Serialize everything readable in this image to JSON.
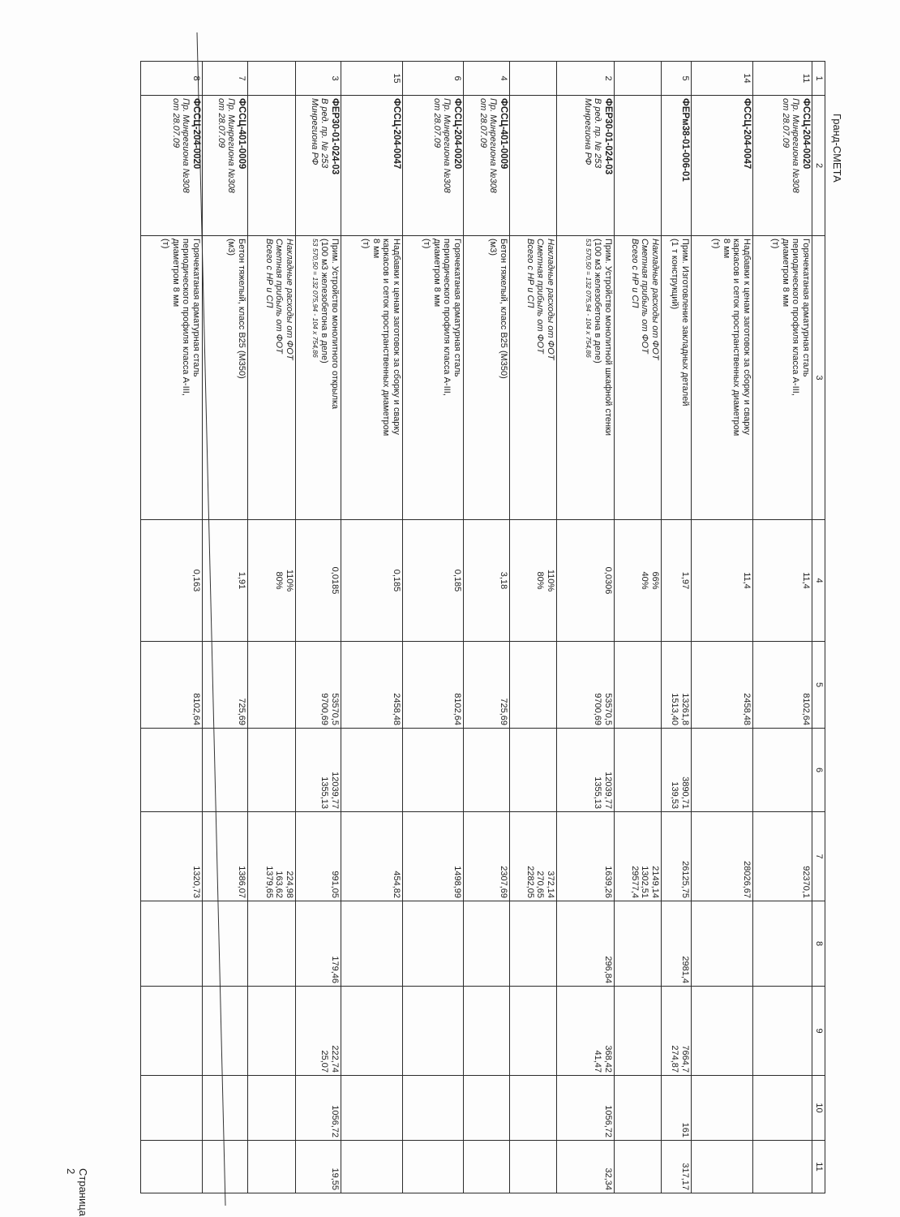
{
  "header": {
    "title": "Гранд-СМЕТА"
  },
  "footer": {
    "page_label": "Страница 2"
  },
  "table": {
    "column_numbers": [
      "1",
      "2",
      "3",
      "4",
      "5",
      "6",
      "7",
      "8",
      "9",
      "10",
      "11"
    ],
    "rows": [
      {
        "n": "11",
        "code": "ФССЦ-204-0020",
        "code_sub": [
          "Пр. Минрегиона №308",
          "от 28.07.09"
        ],
        "desc": [
          "Горячекатаная арматурная сталь",
          "периодического профиля класса А-III,",
          "диаметром 8 мм",
          "(т)"
        ],
        "note": [],
        "italic": [],
        "c4": [
          "11,4"
        ],
        "c5": [
          "8102,64"
        ],
        "c6": [],
        "c7": [
          "92370,1"
        ],
        "c8": [],
        "c9": [],
        "c10": [],
        "c11": []
      },
      {
        "n": "14",
        "code": "ФССЦ-204-0047",
        "code_sub": [],
        "desc": [
          "Надбавки к ценам заготовок за сборку и сварку",
          "каркасов и сеток пространственных диаметром",
          "8 мм",
          "(т)"
        ],
        "note": [],
        "italic": [],
        "c4": [
          "11,4"
        ],
        "c5": [
          "2458,48"
        ],
        "c6": [],
        "c7": [
          "28026,67"
        ],
        "c8": [],
        "c9": [],
        "c10": [],
        "c11": []
      },
      {
        "n": "5",
        "code": "ФЕРм38-01-006-01",
        "code_sub": [],
        "desc": [
          "Прим. Изготовление закладных деталей",
          "(1 т конструкций)"
        ],
        "note": [],
        "italic": [],
        "c4": [
          "1,97"
        ],
        "c5": [
          "13261,8",
          "1513,40"
        ],
        "c6": [
          "3890,71",
          "139,53"
        ],
        "c7": [
          "26125,75"
        ],
        "c8": [
          "2981,4"
        ],
        "c9": [
          "7664,7",
          "274,87"
        ],
        "c10": [
          "161"
        ],
        "c11": [
          "317,17"
        ]
      },
      {
        "n": "",
        "code": "",
        "code_sub": [],
        "desc": [],
        "note": [],
        "italic": [
          "Накладные расходы от ФОТ",
          "Сметная прибыль от ФОТ",
          "Всего с НР и СП"
        ],
        "c4": [
          "66%",
          "40%"
        ],
        "c5": [],
        "c6": [],
        "c7": [
          "2149,14",
          "1302,51",
          "29577,4"
        ],
        "c8": [],
        "c9": [],
        "c10": [],
        "c11": []
      },
      {
        "n": "2",
        "code": "ФЕР30-01-024-03",
        "code_sub": [
          "В ред. пр. № 253",
          "Минрегиона РФ"
        ],
        "desc": [
          "Прим. Устройство монолитной шкафной стенки",
          "(100 м3 железобетона в деле)"
        ],
        "note": [
          "53 570,50 = 132 075,94 - 104 x 754,86"
        ],
        "italic": [],
        "c4": [
          "0,0306"
        ],
        "c5": [
          "53570,5",
          "9700,69"
        ],
        "c6": [
          "12039,77",
          "1355,13"
        ],
        "c7": [
          "1639,26"
        ],
        "c8": [
          "296,84"
        ],
        "c9": [
          "368,42",
          "41,47"
        ],
        "c10": [
          "1056,72"
        ],
        "c11": [
          "32,34"
        ]
      },
      {
        "n": "",
        "code": "",
        "code_sub": [],
        "desc": [],
        "note": [],
        "italic": [
          "Накладные расходы от ФОТ",
          "Сметная прибыль от ФОТ",
          "Всего с НР и СП"
        ],
        "c4": [
          "110%",
          "80%"
        ],
        "c5": [],
        "c6": [],
        "c7": [
          "372,14",
          "270,65",
          "2282,05"
        ],
        "c8": [],
        "c9": [],
        "c10": [],
        "c11": []
      },
      {
        "n": "4",
        "code": "ФССЦ-401-0009",
        "code_sub": [
          "Пр. Минрегиона №308",
          "от 28.07.09"
        ],
        "desc": [
          "Бетон тяжелый, класс В25 (М350)",
          "(м3)"
        ],
        "note": [],
        "italic": [],
        "c4": [
          "3,18"
        ],
        "c5": [
          "725,69"
        ],
        "c6": [],
        "c7": [
          "2307,69"
        ],
        "c8": [],
        "c9": [],
        "c10": [],
        "c11": []
      },
      {
        "n": "6",
        "code": "ФССЦ-204-0020",
        "code_sub": [
          "Пр. Минрегиона №308",
          "от 28.07.09"
        ],
        "desc": [
          "Горячекатаная арматурная сталь",
          "периодического профиля класса А-III,",
          "диаметром 8 мм",
          "(т)"
        ],
        "note": [],
        "italic": [],
        "c4": [
          "0,185"
        ],
        "c5": [
          "8102,64"
        ],
        "c6": [],
        "c7": [
          "1498,99"
        ],
        "c8": [],
        "c9": [],
        "c10": [],
        "c11": []
      },
      {
        "n": "15",
        "code": "ФССЦ-204-0047",
        "code_sub": [],
        "desc": [
          "Надбавки к ценам заготовок за сборку и сварку",
          "каркасов и сеток пространственных диаметром",
          "8 мм",
          "(т)"
        ],
        "note": [],
        "italic": [],
        "c4": [
          "0,185"
        ],
        "c5": [
          "2458,48"
        ],
        "c6": [],
        "c7": [
          "454,82"
        ],
        "c8": [],
        "c9": [],
        "c10": [],
        "c11": []
      },
      {
        "n": "3",
        "code": "ФЕР30-01-024-03",
        "code_sub": [
          "В ред. пр. № 253",
          "Минрегиона РФ"
        ],
        "desc": [
          "Прим. Устройство монолитного открылка",
          "(100 м3 железобетона в деле)"
        ],
        "note": [
          "53 570,50 = 132 075,94 - 104 x 754,86"
        ],
        "italic": [],
        "c4": [
          "0,0185"
        ],
        "c5": [
          "53570,5",
          "9700,69"
        ],
        "c6": [
          "12039,77",
          "1355,13"
        ],
        "c7": [
          "991,05"
        ],
        "c8": [
          "179,46"
        ],
        "c9": [
          "222,74",
          "25,07"
        ],
        "c10": [
          "1056,72"
        ],
        "c11": [
          "19,55"
        ]
      },
      {
        "n": "",
        "code": "",
        "code_sub": [],
        "desc": [],
        "note": [],
        "italic": [
          "Накладные расходы от ФОТ",
          "Сметная прибыль от ФОТ",
          "Всего с НР и СП"
        ],
        "c4": [
          "110%",
          "80%"
        ],
        "c5": [],
        "c6": [],
        "c7": [
          "224,98",
          "163,62",
          "1379,65"
        ],
        "c8": [],
        "c9": [],
        "c10": [],
        "c11": []
      },
      {
        "n": "7",
        "code": "ФССЦ-401-0009",
        "code_sub": [
          "Пр. Минрегиона №308",
          "от 28.07.09"
        ],
        "desc": [
          "Бетон тяжелый, класс В25 (М350)",
          "(м3)"
        ],
        "note": [],
        "italic": [],
        "c4": [
          "1,91"
        ],
        "c5": [
          "725,69"
        ],
        "c6": [],
        "c7": [
          "1386,07"
        ],
        "c8": [],
        "c9": [],
        "c10": [],
        "c11": []
      },
      {
        "n": "8",
        "code": "ФССЦ-204-0020",
        "code_sub": [
          "Пр. Минрегиона №308",
          "от 28.07.09"
        ],
        "desc": [
          "Горячекатаная арматурная сталь",
          "периодического профиля класса А-III,",
          "диаметром 8 мм",
          "(т)"
        ],
        "note": [],
        "italic": [],
        "c4": [
          "0,163"
        ],
        "c5": [
          "8102,64"
        ],
        "c6": [],
        "c7": [
          "1320,73"
        ],
        "c8": [],
        "c9": [],
        "c10": [],
        "c11": []
      }
    ]
  }
}
